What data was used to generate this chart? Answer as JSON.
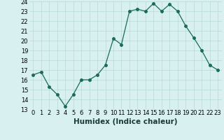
{
  "x": [
    0,
    1,
    2,
    3,
    4,
    5,
    6,
    7,
    8,
    9,
    10,
    11,
    12,
    13,
    14,
    15,
    16,
    17,
    18,
    19,
    20,
    21,
    22,
    23
  ],
  "y": [
    16.5,
    16.8,
    15.3,
    14.5,
    13.3,
    14.5,
    16.0,
    16.0,
    16.5,
    17.5,
    20.2,
    19.6,
    23.0,
    23.2,
    23.0,
    23.8,
    23.0,
    23.7,
    23.0,
    21.5,
    20.3,
    19.0,
    17.5,
    17.0
  ],
  "xlabel": "Humidex (Indice chaleur)",
  "xlim": [
    -0.5,
    23.5
  ],
  "ylim": [
    13,
    24
  ],
  "yticks": [
    13,
    14,
    15,
    16,
    17,
    18,
    19,
    20,
    21,
    22,
    23,
    24
  ],
  "xticks": [
    0,
    1,
    2,
    3,
    4,
    5,
    6,
    7,
    8,
    9,
    10,
    11,
    12,
    13,
    14,
    15,
    16,
    17,
    18,
    19,
    20,
    21,
    22,
    23
  ],
  "line_color": "#1a6b5a",
  "marker_size": 2.5,
  "bg_color": "#d8f0f0",
  "grid_color": "#b8d8d8",
  "xlabel_fontsize": 7.5,
  "tick_fontsize": 6.0
}
